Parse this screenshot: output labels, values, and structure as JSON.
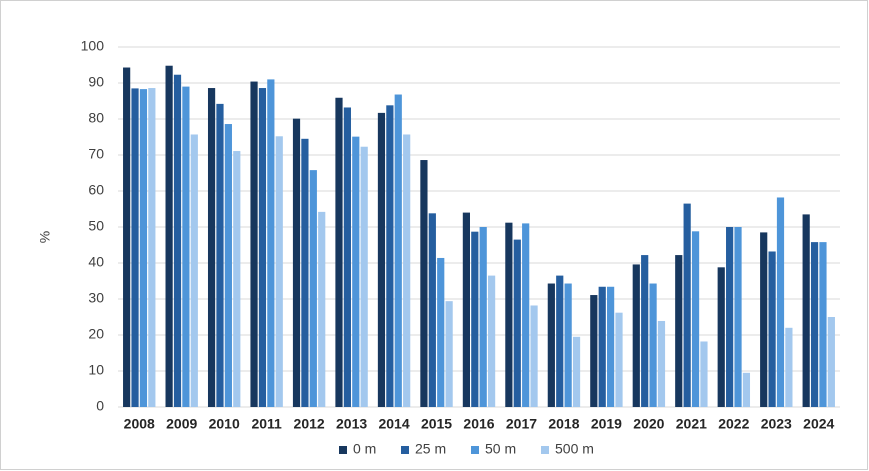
{
  "chart_data": {
    "type": "bar",
    "y_label": "%",
    "categories": [
      "2008",
      "2009",
      "2010",
      "2011",
      "2012",
      "2013",
      "2014",
      "2015",
      "2016",
      "2017",
      "2018",
      "2019",
      "2020",
      "2021",
      "2022",
      "2023",
      "2024"
    ],
    "series": [
      {
        "name": "0 m",
        "color": "#17375e",
        "values": [
          94.3,
          94.8,
          88.6,
          90.4,
          80.1,
          85.9,
          81.7,
          68.6,
          54.0,
          51.2,
          34.3,
          31.1,
          39.6,
          42.2,
          38.8,
          48.5,
          53.5
        ]
      },
      {
        "name": "25 m",
        "color": "#255e9f",
        "values": [
          88.5,
          92.3,
          84.2,
          88.6,
          74.5,
          83.2,
          83.8,
          53.8,
          48.7,
          46.5,
          36.5,
          33.4,
          42.2,
          56.5,
          50.0,
          43.2,
          45.8
        ]
      },
      {
        "name": "50 m",
        "color": "#4e95d9",
        "values": [
          88.3,
          89.0,
          78.6,
          91.0,
          65.8,
          75.1,
          86.8,
          41.4,
          50.0,
          51.0,
          34.3,
          33.4,
          34.3,
          48.8,
          50.0,
          58.2,
          45.8
        ]
      },
      {
        "name": "500 m",
        "color": "#a3c8ee",
        "values": [
          88.6,
          75.7,
          71.1,
          75.2,
          54.2,
          72.3,
          75.7,
          29.4,
          36.5,
          28.2,
          19.5,
          26.2,
          23.9,
          18.2,
          9.5,
          22.0,
          25.0
        ]
      }
    ],
    "ylim": [
      0,
      100
    ],
    "yticks": [
      0,
      10,
      20,
      30,
      40,
      50,
      60,
      70,
      80,
      90,
      100
    ],
    "grid": true,
    "legend": "bottom"
  }
}
